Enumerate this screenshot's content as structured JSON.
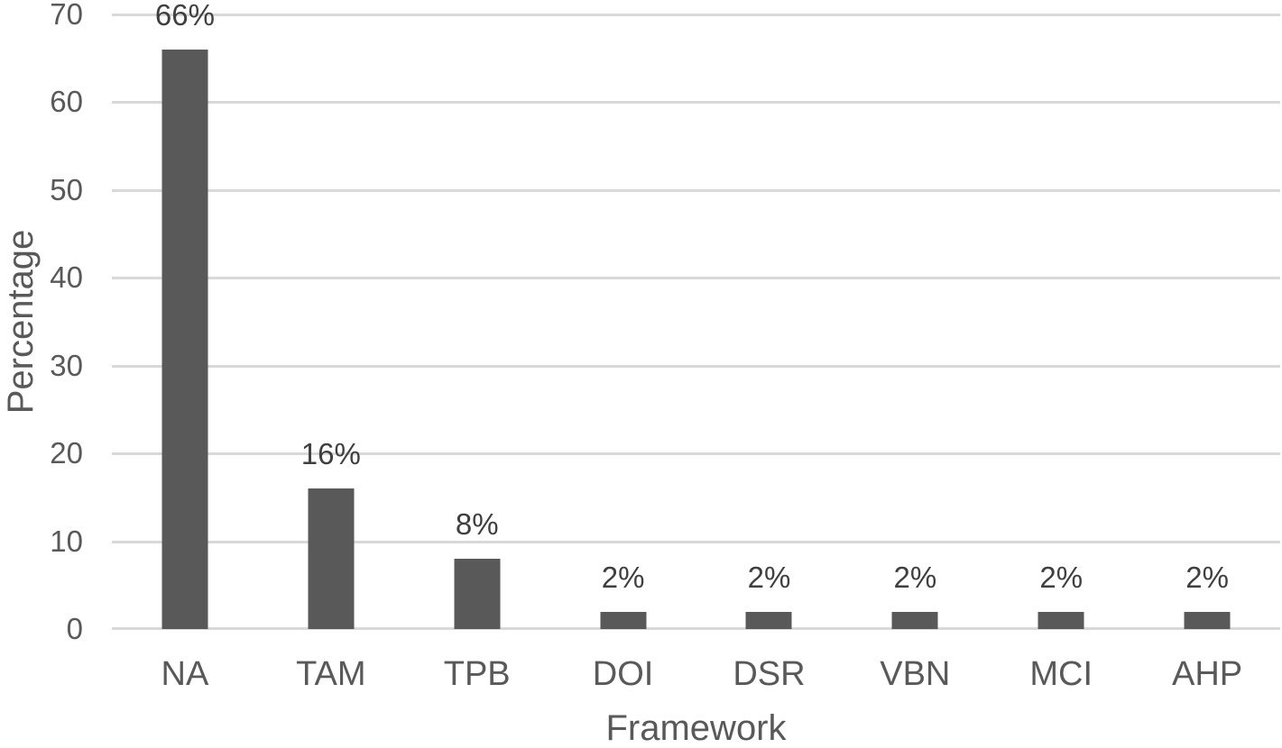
{
  "chart_data": {
    "type": "bar",
    "title": "",
    "xlabel": "Framework",
    "ylabel": "Percentage",
    "categories": [
      "NA",
      "TAM",
      "TPB",
      "DOI",
      "DSR",
      "VBN",
      "MCI",
      "AHP"
    ],
    "values": [
      66,
      16,
      8,
      2,
      2,
      2,
      2,
      2
    ],
    "data_labels": [
      "66%",
      "16%",
      "8%",
      "2%",
      "2%",
      "2%",
      "2%",
      "2%"
    ],
    "ylim": [
      0,
      70
    ],
    "yticks": [
      0,
      10,
      20,
      30,
      40,
      50,
      60,
      70
    ],
    "grid": "horizontal",
    "legend_position": "none",
    "colors": {
      "bar": "#595959",
      "gridline": "#d9d9d9",
      "axis_line": "#d9d9d9",
      "tick_text": "#595959",
      "category_text": "#595959",
      "data_label_text": "#3f3f3f",
      "axis_title_text": "#595959",
      "background": "#ffffff"
    }
  }
}
